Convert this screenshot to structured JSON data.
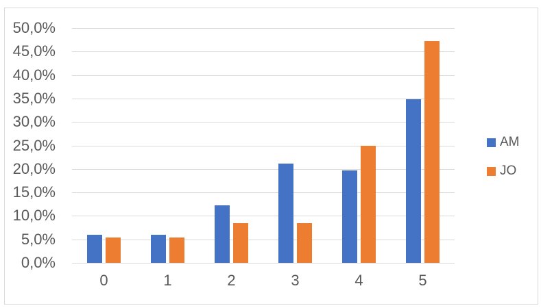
{
  "window": {
    "background": "#FFFFFF",
    "frame_border_color": "#D9D9D9"
  },
  "chart_data": {
    "type": "bar",
    "title": "",
    "xlabel": "",
    "ylabel": "",
    "categories": [
      "0",
      "1",
      "2",
      "3",
      "4",
      "5"
    ],
    "series": [
      {
        "name": "AM",
        "color": "#4472C4",
        "values": [
          6.0,
          6.0,
          12.2,
          21.2,
          19.7,
          34.8
        ]
      },
      {
        "name": "JO",
        "color": "#ED7D31",
        "values": [
          5.4,
          5.4,
          8.4,
          8.4,
          25.0,
          47.3
        ]
      }
    ],
    "ylim": [
      0,
      50
    ],
    "y_step": 5,
    "y_tick_labels": [
      "0,0%",
      "5,0%",
      "10,0%",
      "15,0%",
      "20,0%",
      "25,0%",
      "30,0%",
      "35,0%",
      "40,0%",
      "45,0%",
      "50,0%"
    ],
    "value_unit": "percent",
    "decimal_separator": ",",
    "grid": true,
    "gridline_color": "#D9D9D9",
    "axis_text_color": "#595959",
    "legend_position": "right"
  },
  "legend": {
    "items": [
      {
        "label": "AM",
        "color": "#4472C4"
      },
      {
        "label": "JO",
        "color": "#ED7D31"
      }
    ]
  }
}
